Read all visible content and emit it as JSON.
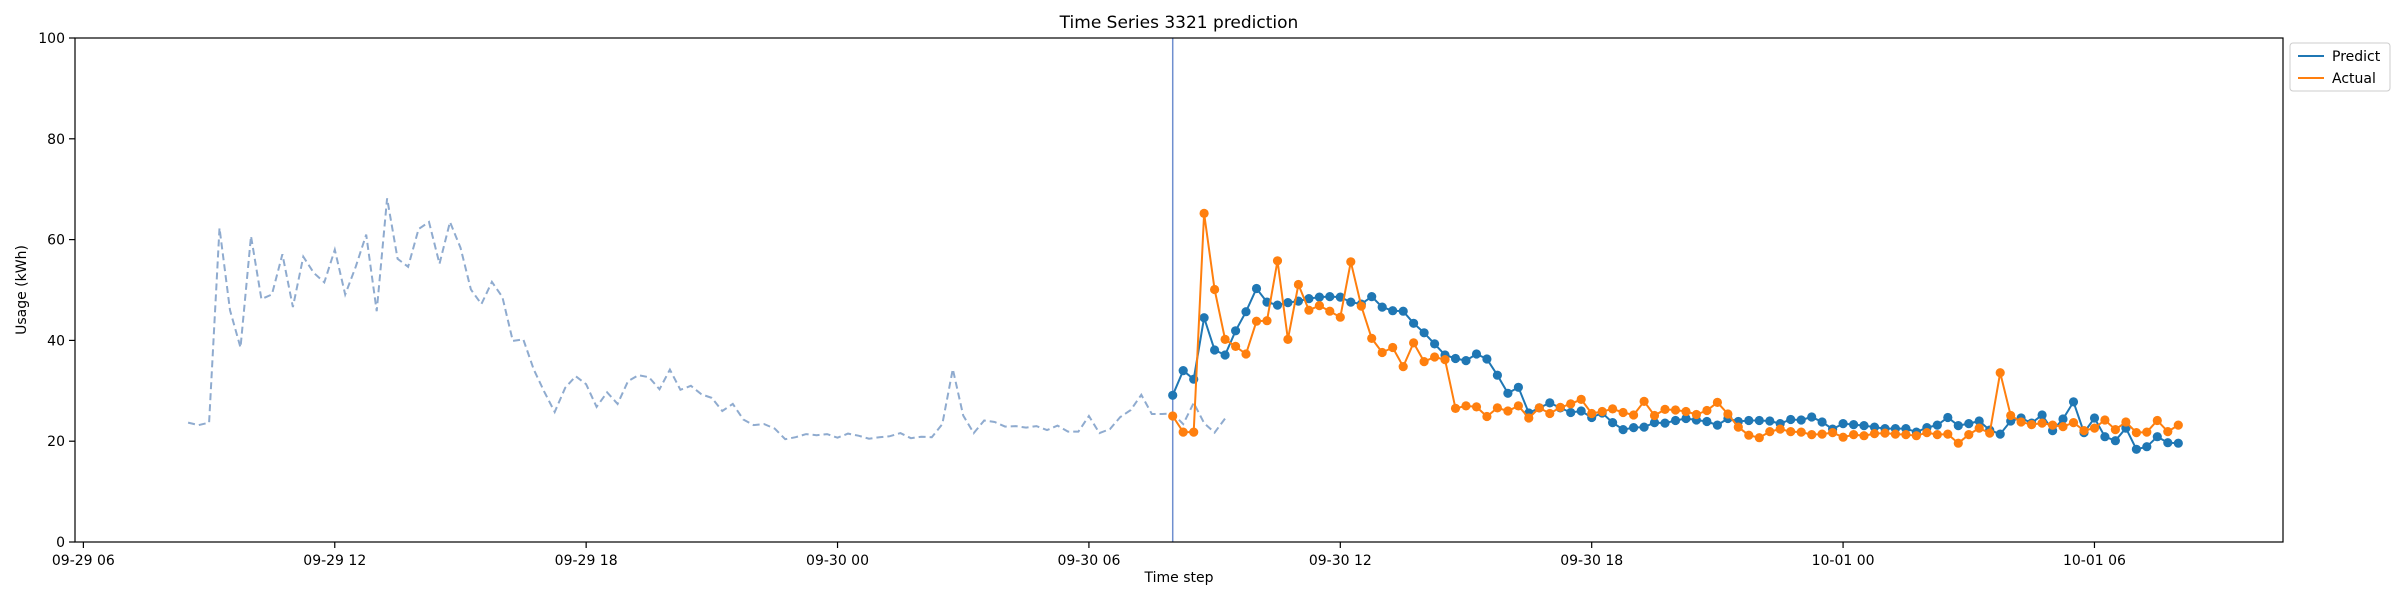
{
  "chart_data": {
    "type": "line",
    "title": "Time Series 3321 prediction",
    "xlabel": "Time step",
    "ylabel": "Usage (kWh)",
    "ylim": [
      0,
      100
    ],
    "yticks": [
      0,
      20,
      40,
      60,
      80,
      100
    ],
    "xlim": [
      "2025-09-29 05:48",
      "2025-10-01 10:30"
    ],
    "xticks": [
      {
        "t": "2025-09-29 06:00",
        "label": "09-29 06"
      },
      {
        "t": "2025-09-29 12:00",
        "label": "09-29 12"
      },
      {
        "t": "2025-09-29 18:00",
        "label": "09-29 18"
      },
      {
        "t": "2025-09-30 00:00",
        "label": "09-30 00"
      },
      {
        "t": "2025-09-30 06:00",
        "label": "09-30 06"
      },
      {
        "t": "2025-09-30 12:00",
        "label": "09-30 12"
      },
      {
        "t": "2025-09-30 18:00",
        "label": "09-30 18"
      },
      {
        "t": "2025-10-01 00:00",
        "label": "10-01 00"
      },
      {
        "t": "2025-10-01 06:00",
        "label": "10-01 06"
      }
    ],
    "grid": false,
    "legend_position": "top-right (outside)",
    "vline": {
      "t": "2025-09-30 08:00",
      "color": "#6f8fcf"
    },
    "history": {
      "start": "2025-09-29 08:30",
      "step_minutes": 15,
      "color": "#8fabcf",
      "style": "dashed",
      "values": [
        23.7,
        23.2,
        23.7,
        62.3,
        46,
        38.6,
        60.7,
        48.2,
        49.1,
        57.1,
        46.6,
        56.6,
        53.4,
        51.5,
        58,
        49.1,
        54.6,
        61,
        45.8,
        68.2,
        56.2,
        54.6,
        62.1,
        63.5,
        55.2,
        63.5,
        58.4,
        50.1,
        47.2,
        51.6,
        48.6,
        39.9,
        40.2,
        34.2,
        29.8,
        25.8,
        30.6,
        32.9,
        31.3,
        26.8,
        29.7,
        27.4,
        31.9,
        33.1,
        32.7,
        30.3,
        34.2,
        30.2,
        31,
        29.3,
        28.6,
        26,
        27.4,
        24.3,
        23.2,
        23.4,
        22.5,
        20.4,
        20.8,
        21.4,
        21.2,
        21.4,
        20.7,
        21.5,
        21.1,
        20.5,
        20.8,
        21,
        21.6,
        20.6,
        20.9,
        20.8,
        23.4,
        34.3,
        25.1,
        21.6,
        24.1,
        23.8,
        22.9,
        23,
        22.7,
        23,
        22.2,
        23.1,
        21.9,
        21.9,
        25,
        21.6,
        22.4,
        24.8,
        26.2,
        29.2,
        25.4,
        25.4,
        25.5,
        23.4,
        27.6,
        23.6,
        21.7,
        24.5
      ]
    },
    "series": [
      {
        "name": "Predict",
        "color": "#1f77b4",
        "start": "2025-09-30 08:00",
        "step_minutes": 15,
        "values": [
          29.1,
          34,
          32.3,
          44.5,
          38.1,
          37.1,
          41.9,
          45.7,
          50.3,
          47.6,
          47,
          47.5,
          47.8,
          48.3,
          48.6,
          48.7,
          48.6,
          47.6,
          47.2,
          48.7,
          46.6,
          45.9,
          45.8,
          43.4,
          41.5,
          39.3,
          37.1,
          36.4,
          36,
          37.3,
          36.3,
          33.1,
          29.5,
          30.7,
          25.6,
          26.6,
          27.6,
          26.6,
          25.7,
          26,
          24.7,
          25.6,
          23.7,
          22.3,
          22.7,
          22.8,
          23.7,
          23.6,
          24.1,
          24.5,
          24.2,
          23.9,
          23.2,
          24.5,
          23.9,
          24.1,
          24.1,
          24,
          23.5,
          24.3,
          24.2,
          24.8,
          23.8,
          22.4,
          23.5,
          23.3,
          23.1,
          22.8,
          22.5,
          22.5,
          22.5,
          21.8,
          22.7,
          23.2,
          24.7,
          23.1,
          23.5,
          24,
          22.2,
          21.4,
          24,
          24.6,
          23.6,
          25.2,
          22.1,
          24.4,
          27.8,
          21.7,
          24.6,
          20.9,
          20.1,
          22.6,
          18.4,
          18.9,
          20.9,
          19.7,
          19.6
        ]
      },
      {
        "name": "Actual",
        "color": "#ff7f0e",
        "start": "2025-09-30 08:00",
        "step_minutes": 15,
        "values": [
          25,
          21.8,
          21.8,
          65.2,
          50.1,
          40.2,
          38.8,
          37.3,
          43.8,
          43.9,
          55.8,
          40.2,
          51.1,
          46,
          46.9,
          45.8,
          44.6,
          55.6,
          46.8,
          40.4,
          37.6,
          38.6,
          34.8,
          39.5,
          35.8,
          36.7,
          36.2,
          26.5,
          27,
          26.8,
          24.9,
          26.6,
          26,
          27,
          24.6,
          26.6,
          25.5,
          26.7,
          27.4,
          28.3,
          25.5,
          25.9,
          26.4,
          25.7,
          25.2,
          27.9,
          25.1,
          26.3,
          26.2,
          25.9,
          25.3,
          26.1,
          27.7,
          25.4,
          22.8,
          21.2,
          20.7,
          21.9,
          22.4,
          21.9,
          21.8,
          21.3,
          21.4,
          21.7,
          20.8,
          21.3,
          21.1,
          21.5,
          21.6,
          21.4,
          21.3,
          21.1,
          21.7,
          21.3,
          21.4,
          19.6,
          21.3,
          22.6,
          21.6,
          33.6,
          25.1,
          23.8,
          23.3,
          23.6,
          23.2,
          22.9,
          23.7,
          22.1,
          22.6,
          24.2,
          22.3,
          23.8,
          21.7,
          21.8,
          24.1,
          21.9,
          23.2
        ]
      }
    ],
    "legend": [
      "Predict",
      "Actual"
    ]
  }
}
